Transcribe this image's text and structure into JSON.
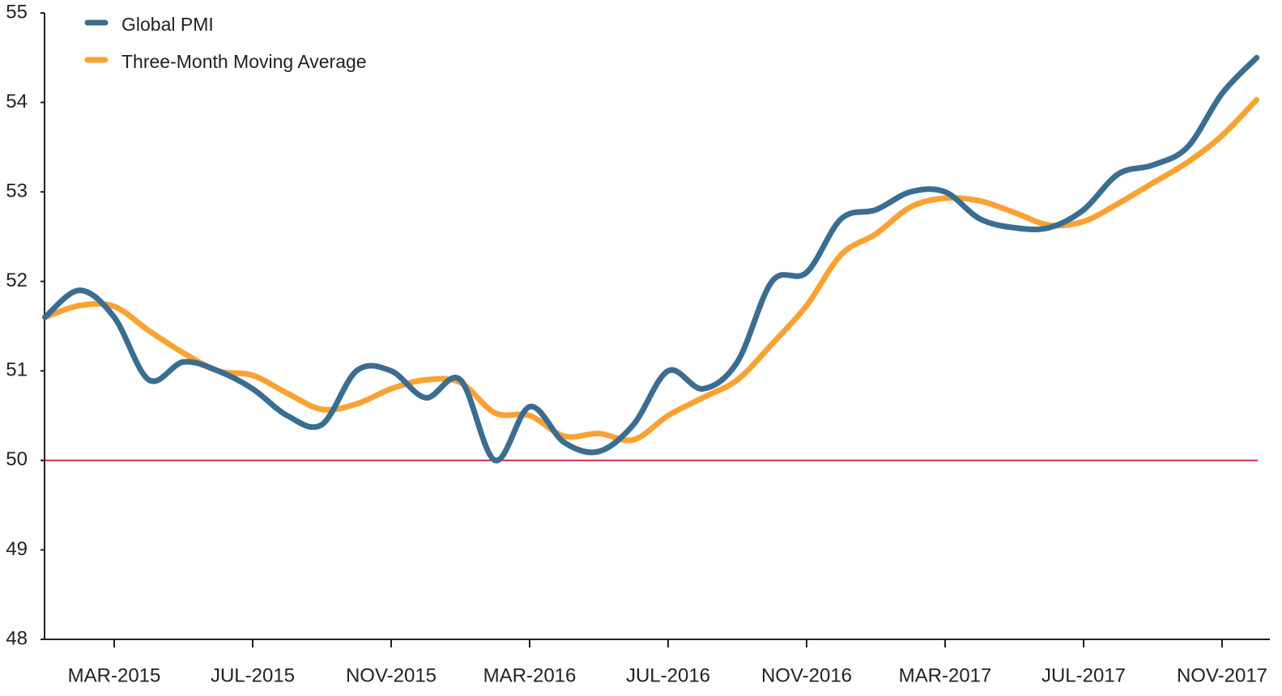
{
  "chart_data": {
    "type": "line",
    "categories": [
      null,
      null,
      "MAR-2015",
      null,
      null,
      null,
      "JUL-2015",
      null,
      null,
      null,
      "NOV-2015",
      null,
      null,
      null,
      "MAR-2016",
      null,
      null,
      null,
      "JUL-2016",
      null,
      null,
      null,
      "NOV-2016",
      null,
      null,
      null,
      "MAR-2017",
      null,
      null,
      null,
      "JUL-2017",
      null,
      null,
      null,
      "NOV-2017",
      null
    ],
    "series": [
      {
        "name": "Global PMI",
        "color": "#3b6d91",
        "values": [
          51.6,
          51.9,
          51.6,
          50.9,
          51.1,
          51.0,
          50.8,
          50.5,
          50.4,
          51.0,
          51.0,
          50.7,
          50.9,
          50.0,
          50.6,
          50.2,
          50.1,
          50.4,
          51.0,
          50.8,
          51.1,
          52.0,
          52.1,
          52.7,
          52.8,
          53.0,
          53.0,
          52.7,
          52.6,
          52.6,
          52.8,
          53.2,
          53.3,
          53.5,
          54.1,
          54.5
        ]
      },
      {
        "name": "Three-Month Moving Average",
        "color": "#f9a234",
        "values": [
          51.6,
          51.73,
          51.72,
          51.45,
          51.2,
          51.0,
          50.95,
          50.75,
          50.57,
          50.63,
          50.8,
          50.9,
          50.87,
          50.53,
          50.5,
          50.27,
          50.3,
          50.23,
          50.5,
          50.7,
          50.9,
          51.3,
          51.73,
          52.3,
          52.53,
          52.83,
          52.93,
          52.9,
          52.77,
          52.63,
          52.67,
          52.87,
          53.1,
          53.33,
          53.63,
          54.03
        ]
      }
    ],
    "ylim": [
      48,
      55
    ],
    "yticks": [
      48,
      49,
      50,
      51,
      52,
      53,
      54,
      55
    ],
    "reference_line": {
      "value": 50,
      "color": "#c8324b"
    },
    "legend": "upper-left",
    "grid": false
  }
}
